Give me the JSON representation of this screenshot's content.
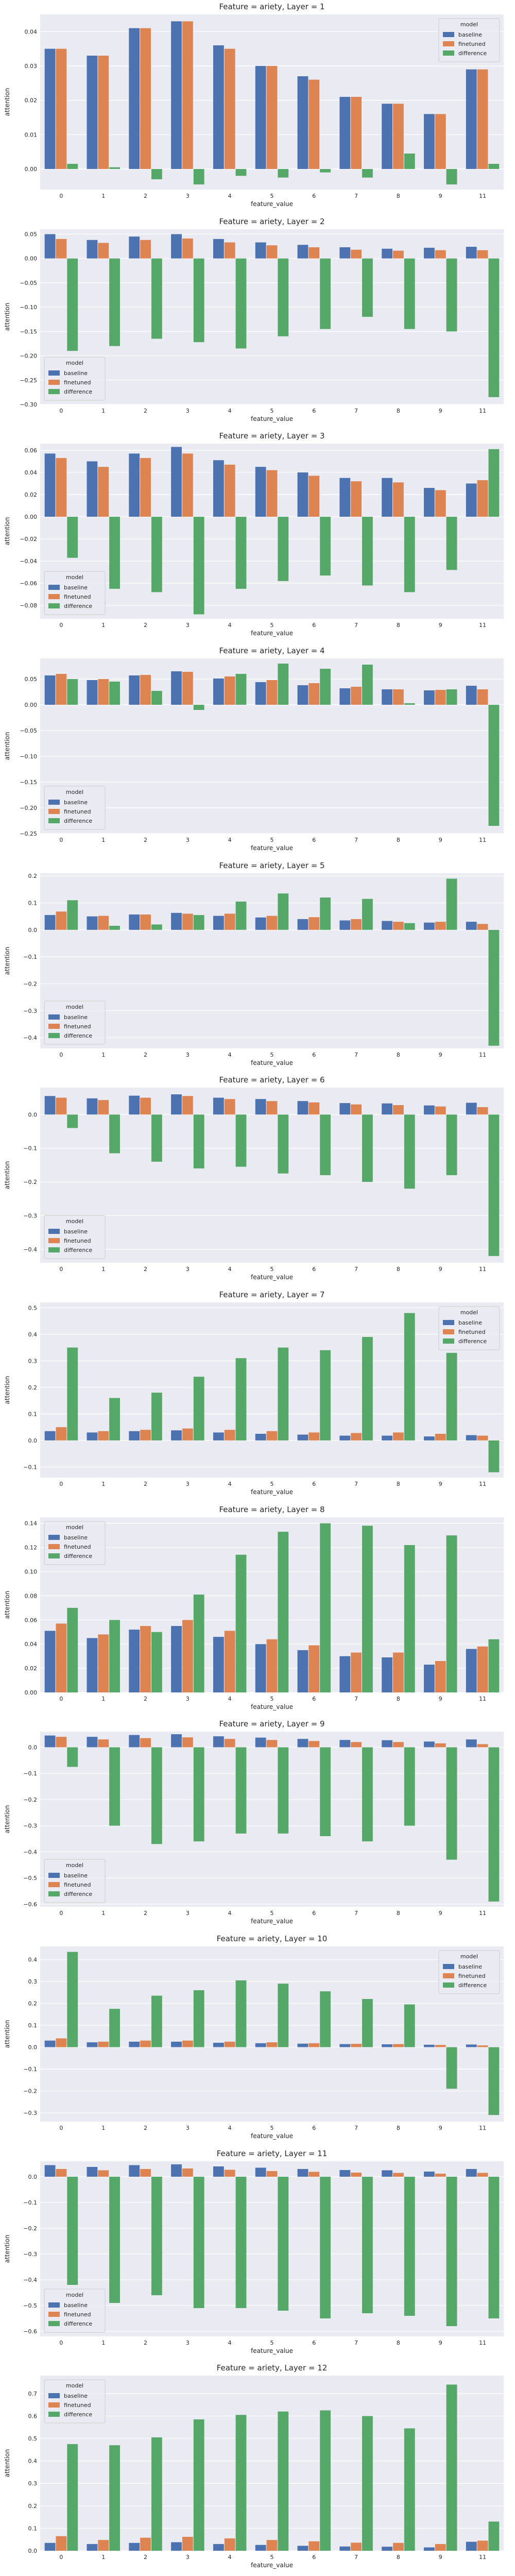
{
  "colors": {
    "baseline": "#4c72b0",
    "finetuned": "#dd8452",
    "difference": "#55a868",
    "plot_bg": "#eaeaf2",
    "grid": "#ffffff"
  },
  "chart_data": [
    {
      "type": "bar",
      "title": "Feature = ariety, Layer = 1",
      "xlabel": "feature_value",
      "ylabel": "attention",
      "categories": [
        "0",
        "1",
        "2",
        "3",
        "4",
        "5",
        "6",
        "7",
        "8",
        "9",
        "11"
      ],
      "ylim": [
        -0.006,
        0.045
      ],
      "yticks": [
        0.0,
        0.01,
        0.02,
        0.03,
        0.04
      ],
      "ytick_labels": [
        "0.00",
        "0.01",
        "0.02",
        "0.03",
        "0.04"
      ],
      "legend": {
        "title": "model",
        "position": "top-right"
      },
      "series": [
        {
          "name": "baseline",
          "values": [
            0.035,
            0.033,
            0.041,
            0.043,
            0.036,
            0.03,
            0.027,
            0.021,
            0.019,
            0.016,
            0.029
          ]
        },
        {
          "name": "finetuned",
          "values": [
            0.035,
            0.033,
            0.041,
            0.043,
            0.035,
            0.03,
            0.026,
            0.021,
            0.019,
            0.016,
            0.029
          ]
        },
        {
          "name": "difference",
          "values": [
            0.0015,
            0.0005,
            -0.003,
            -0.0045,
            -0.002,
            -0.0025,
            -0.001,
            -0.0025,
            0.0045,
            -0.0045,
            0.0015
          ]
        }
      ]
    },
    {
      "type": "bar",
      "title": "Feature = ariety, Layer = 2",
      "xlabel": "feature_value",
      "ylabel": "attention",
      "categories": [
        "0",
        "1",
        "2",
        "3",
        "4",
        "5",
        "6",
        "7",
        "8",
        "9",
        "11"
      ],
      "ylim": [
        -0.3,
        0.06
      ],
      "yticks": [
        0.05,
        0.0,
        -0.05,
        -0.1,
        -0.15,
        -0.2,
        -0.25,
        -0.3
      ],
      "ytick_labels": [
        "0.05",
        "0.00",
        "−0.05",
        "−0.10",
        "−0.15",
        "−0.20",
        "−0.25",
        "−0.30"
      ],
      "legend": {
        "title": "model",
        "position": "bottom-left"
      },
      "series": [
        {
          "name": "baseline",
          "values": [
            0.05,
            0.038,
            0.045,
            0.05,
            0.04,
            0.033,
            0.028,
            0.023,
            0.02,
            0.022,
            0.024
          ]
        },
        {
          "name": "finetuned",
          "values": [
            0.04,
            0.032,
            0.038,
            0.041,
            0.033,
            0.027,
            0.023,
            0.018,
            0.016,
            0.017,
            0.017
          ]
        },
        {
          "name": "difference",
          "values": [
            -0.19,
            -0.18,
            -0.165,
            -0.172,
            -0.185,
            -0.16,
            -0.145,
            -0.12,
            -0.145,
            -0.15,
            -0.285
          ]
        }
      ]
    },
    {
      "type": "bar",
      "title": "Feature = ariety, Layer = 3",
      "xlabel": "feature_value",
      "ylabel": "attention",
      "categories": [
        "0",
        "1",
        "2",
        "3",
        "4",
        "5",
        "6",
        "7",
        "8",
        "9",
        "11"
      ],
      "ylim": [
        -0.092,
        0.066
      ],
      "yticks": [
        0.06,
        0.04,
        0.02,
        0.0,
        -0.02,
        -0.04,
        -0.06,
        -0.08
      ],
      "ytick_labels": [
        "0.06",
        "0.04",
        "0.02",
        "0.00",
        "−0.02",
        "−0.04",
        "−0.06",
        "−0.08"
      ],
      "legend": {
        "title": "model",
        "position": "bottom-left"
      },
      "series": [
        {
          "name": "baseline",
          "values": [
            0.057,
            0.05,
            0.057,
            0.063,
            0.051,
            0.045,
            0.04,
            0.035,
            0.035,
            0.026,
            0.03
          ]
        },
        {
          "name": "finetuned",
          "values": [
            0.053,
            0.045,
            0.053,
            0.057,
            0.047,
            0.042,
            0.037,
            0.032,
            0.031,
            0.024,
            0.033
          ]
        },
        {
          "name": "difference",
          "values": [
            -0.037,
            -0.065,
            -0.068,
            -0.088,
            -0.065,
            -0.058,
            -0.053,
            -0.062,
            -0.068,
            -0.048,
            0.061
          ]
        }
      ]
    },
    {
      "type": "bar",
      "title": "Feature = ariety, Layer = 4",
      "xlabel": "feature_value",
      "ylabel": "attention",
      "categories": [
        "0",
        "1",
        "2",
        "3",
        "4",
        "5",
        "6",
        "7",
        "8",
        "9",
        "11"
      ],
      "ylim": [
        -0.25,
        0.09
      ],
      "yticks": [
        0.05,
        0.0,
        -0.05,
        -0.1,
        -0.15,
        -0.2,
        -0.25
      ],
      "ytick_labels": [
        "0.05",
        "0.00",
        "−0.05",
        "−0.10",
        "−0.15",
        "−0.20",
        "−0.25"
      ],
      "legend": {
        "title": "model",
        "position": "bottom-left"
      },
      "series": [
        {
          "name": "baseline",
          "values": [
            0.057,
            0.048,
            0.057,
            0.065,
            0.051,
            0.044,
            0.038,
            0.032,
            0.03,
            0.028,
            0.037
          ]
        },
        {
          "name": "finetuned",
          "values": [
            0.06,
            0.05,
            0.058,
            0.064,
            0.055,
            0.048,
            0.042,
            0.035,
            0.03,
            0.029,
            0.03
          ]
        },
        {
          "name": "difference",
          "values": [
            0.05,
            0.045,
            0.027,
            -0.01,
            0.06,
            0.08,
            0.07,
            0.078,
            0.003,
            0.03,
            -0.235
          ]
        }
      ]
    },
    {
      "type": "bar",
      "title": "Feature = ariety, Layer = 5",
      "xlabel": "feature_value",
      "ylabel": "attention",
      "categories": [
        "0",
        "1",
        "2",
        "3",
        "4",
        "5",
        "6",
        "7",
        "8",
        "9",
        "11"
      ],
      "ylim": [
        -0.44,
        0.21
      ],
      "yticks": [
        0.2,
        0.1,
        0.0,
        -0.1,
        -0.2,
        -0.3,
        -0.4
      ],
      "ytick_labels": [
        "0.2",
        "0.1",
        "0.0",
        "−0.1",
        "−0.2",
        "−0.3",
        "−0.4"
      ],
      "legend": {
        "title": "model",
        "position": "bottom-left"
      },
      "series": [
        {
          "name": "baseline",
          "values": [
            0.055,
            0.05,
            0.057,
            0.063,
            0.052,
            0.046,
            0.04,
            0.035,
            0.033,
            0.027,
            0.03
          ]
        },
        {
          "name": "finetuned",
          "values": [
            0.068,
            0.052,
            0.057,
            0.06,
            0.06,
            0.052,
            0.047,
            0.04,
            0.03,
            0.03,
            0.022
          ]
        },
        {
          "name": "difference",
          "values": [
            0.11,
            0.015,
            0.02,
            0.055,
            0.105,
            0.135,
            0.12,
            0.115,
            0.025,
            0.19,
            -0.43
          ]
        }
      ]
    },
    {
      "type": "bar",
      "title": "Feature = ariety, Layer = 6",
      "xlabel": "feature_value",
      "ylabel": "attention",
      "categories": [
        "0",
        "1",
        "2",
        "3",
        "4",
        "5",
        "6",
        "7",
        "8",
        "9",
        "11"
      ],
      "ylim": [
        -0.44,
        0.08
      ],
      "yticks": [
        0.0,
        -0.1,
        -0.2,
        -0.3,
        -0.4
      ],
      "ytick_labels": [
        "0.0",
        "−0.1",
        "−0.2",
        "−0.3",
        "−0.4"
      ],
      "legend": {
        "title": "model",
        "position": "bottom-left"
      },
      "series": [
        {
          "name": "baseline",
          "values": [
            0.055,
            0.048,
            0.056,
            0.06,
            0.05,
            0.046,
            0.04,
            0.034,
            0.033,
            0.027,
            0.035
          ]
        },
        {
          "name": "finetuned",
          "values": [
            0.05,
            0.043,
            0.05,
            0.055,
            0.046,
            0.04,
            0.036,
            0.03,
            0.028,
            0.024,
            0.022
          ]
        },
        {
          "name": "difference",
          "values": [
            -0.04,
            -0.115,
            -0.14,
            -0.16,
            -0.155,
            -0.175,
            -0.18,
            -0.2,
            -0.22,
            -0.18,
            -0.42
          ]
        }
      ]
    },
    {
      "type": "bar",
      "title": "Feature = ariety, Layer = 7",
      "xlabel": "feature_value",
      "ylabel": "attention",
      "categories": [
        "0",
        "1",
        "2",
        "3",
        "4",
        "5",
        "6",
        "7",
        "8",
        "9",
        "11"
      ],
      "ylim": [
        -0.14,
        0.52
      ],
      "yticks": [
        0.5,
        0.4,
        0.3,
        0.2,
        0.1,
        0.0,
        -0.1
      ],
      "ytick_labels": [
        "0.5",
        "0.4",
        "0.3",
        "0.2",
        "0.1",
        "0.0",
        "−0.1"
      ],
      "legend": {
        "title": "model",
        "position": "top-right"
      },
      "series": [
        {
          "name": "baseline",
          "values": [
            0.035,
            0.03,
            0.035,
            0.038,
            0.03,
            0.025,
            0.022,
            0.018,
            0.018,
            0.015,
            0.02
          ]
        },
        {
          "name": "finetuned",
          "values": [
            0.05,
            0.035,
            0.04,
            0.045,
            0.04,
            0.035,
            0.03,
            0.028,
            0.03,
            0.025,
            0.018
          ]
        },
        {
          "name": "difference",
          "values": [
            0.35,
            0.16,
            0.18,
            0.24,
            0.31,
            0.35,
            0.34,
            0.39,
            0.48,
            0.33,
            -0.12
          ]
        }
      ]
    },
    {
      "type": "bar",
      "title": "Feature = ariety, Layer = 8",
      "xlabel": "feature_value",
      "ylabel": "attention",
      "categories": [
        "0",
        "1",
        "2",
        "3",
        "4",
        "5",
        "6",
        "7",
        "8",
        "9",
        "11"
      ],
      "ylim": [
        0.0,
        0.145
      ],
      "yticks": [
        0.0,
        0.02,
        0.04,
        0.06,
        0.08,
        0.1,
        0.12,
        0.14
      ],
      "ytick_labels": [
        "0.00",
        "0.02",
        "0.04",
        "0.06",
        "0.08",
        "0.10",
        "0.12",
        "0.14"
      ],
      "legend": {
        "title": "model",
        "position": "top-left"
      },
      "series": [
        {
          "name": "baseline",
          "values": [
            0.051,
            0.045,
            0.052,
            0.055,
            0.046,
            0.04,
            0.035,
            0.03,
            0.029,
            0.023,
            0.036
          ]
        },
        {
          "name": "finetuned",
          "values": [
            0.057,
            0.048,
            0.055,
            0.06,
            0.051,
            0.044,
            0.039,
            0.033,
            0.033,
            0.026,
            0.038
          ]
        },
        {
          "name": "difference",
          "values": [
            0.07,
            0.06,
            0.05,
            0.081,
            0.114,
            0.133,
            0.14,
            0.138,
            0.122,
            0.13,
            0.044
          ]
        }
      ]
    },
    {
      "type": "bar",
      "title": "Feature = ariety, Layer = 9",
      "xlabel": "feature_value",
      "ylabel": "attention",
      "categories": [
        "0",
        "1",
        "2",
        "3",
        "4",
        "5",
        "6",
        "7",
        "8",
        "9",
        "11"
      ],
      "ylim": [
        -0.61,
        0.06
      ],
      "yticks": [
        0.0,
        -0.1,
        -0.2,
        -0.3,
        -0.4,
        -0.5,
        -0.6
      ],
      "ytick_labels": [
        "0.0",
        "−0.1",
        "−0.2",
        "−0.3",
        "−0.4",
        "−0.5",
        "−0.6"
      ],
      "legend": {
        "title": "model",
        "position": "bottom-left"
      },
      "series": [
        {
          "name": "baseline",
          "values": [
            0.045,
            0.04,
            0.047,
            0.05,
            0.042,
            0.037,
            0.032,
            0.028,
            0.027,
            0.022,
            0.03
          ]
        },
        {
          "name": "finetuned",
          "values": [
            0.04,
            0.03,
            0.035,
            0.038,
            0.032,
            0.028,
            0.024,
            0.02,
            0.02,
            0.015,
            0.012
          ]
        },
        {
          "name": "difference",
          "values": [
            -0.075,
            -0.3,
            -0.37,
            -0.36,
            -0.33,
            -0.33,
            -0.34,
            -0.36,
            -0.3,
            -0.43,
            -0.59
          ]
        }
      ]
    },
    {
      "type": "bar",
      "title": "Feature = ariety, Layer = 10",
      "xlabel": "feature_value",
      "ylabel": "attention",
      "categories": [
        "0",
        "1",
        "2",
        "3",
        "4",
        "5",
        "6",
        "7",
        "8",
        "9",
        "11"
      ],
      "ylim": [
        -0.34,
        0.46
      ],
      "yticks": [
        0.4,
        0.3,
        0.2,
        0.1,
        0.0,
        -0.1,
        -0.2,
        -0.3
      ],
      "ytick_labels": [
        "0.4",
        "0.3",
        "0.2",
        "0.1",
        "0.0",
        "−0.1",
        "−0.2",
        "−0.3"
      ],
      "legend": {
        "title": "model",
        "position": "top-right"
      },
      "series": [
        {
          "name": "baseline",
          "values": [
            0.03,
            0.022,
            0.025,
            0.025,
            0.02,
            0.018,
            0.016,
            0.014,
            0.013,
            0.011,
            0.012
          ]
        },
        {
          "name": "finetuned",
          "values": [
            0.04,
            0.025,
            0.03,
            0.03,
            0.025,
            0.022,
            0.018,
            0.015,
            0.014,
            0.01,
            0.008
          ]
        },
        {
          "name": "difference",
          "values": [
            0.435,
            0.175,
            0.235,
            0.26,
            0.305,
            0.29,
            0.255,
            0.22,
            0.195,
            -0.19,
            -0.31
          ]
        }
      ]
    },
    {
      "type": "bar",
      "title": "Feature = ariety, Layer = 11",
      "xlabel": "feature_value",
      "ylabel": "attention",
      "categories": [
        "0",
        "1",
        "2",
        "3",
        "4",
        "5",
        "6",
        "7",
        "8",
        "9",
        "11"
      ],
      "ylim": [
        -0.62,
        0.06
      ],
      "yticks": [
        0.0,
        -0.1,
        -0.2,
        -0.3,
        -0.4,
        -0.5,
        -0.6
      ],
      "ytick_labels": [
        "0.0",
        "−0.1",
        "−0.2",
        "−0.3",
        "−0.4",
        "−0.5",
        "−0.6"
      ],
      "legend": {
        "title": "model",
        "position": "bottom-left"
      },
      "series": [
        {
          "name": "baseline",
          "values": [
            0.045,
            0.038,
            0.045,
            0.048,
            0.04,
            0.035,
            0.03,
            0.026,
            0.025,
            0.02,
            0.03
          ]
        },
        {
          "name": "finetuned",
          "values": [
            0.03,
            0.025,
            0.03,
            0.032,
            0.027,
            0.022,
            0.019,
            0.016,
            0.015,
            0.012,
            0.015
          ]
        },
        {
          "name": "difference",
          "values": [
            -0.42,
            -0.49,
            -0.46,
            -0.51,
            -0.51,
            -0.52,
            -0.55,
            -0.53,
            -0.54,
            -0.58,
            -0.55
          ]
        }
      ]
    },
    {
      "type": "bar",
      "title": "Feature = ariety, Layer = 12",
      "xlabel": "feature_value",
      "ylabel": "attention",
      "categories": [
        "0",
        "1",
        "2",
        "3",
        "4",
        "5",
        "6",
        "7",
        "8",
        "9",
        "11"
      ],
      "ylim": [
        0.0,
        0.78
      ],
      "yticks": [
        0.0,
        0.1,
        0.2,
        0.3,
        0.4,
        0.5,
        0.6,
        0.7
      ],
      "ytick_labels": [
        "0.0",
        "0.1",
        "0.2",
        "0.3",
        "0.4",
        "0.5",
        "0.6",
        "0.7"
      ],
      "legend": {
        "title": "model",
        "position": "top-left"
      },
      "series": [
        {
          "name": "baseline",
          "values": [
            0.035,
            0.03,
            0.035,
            0.038,
            0.03,
            0.026,
            0.022,
            0.019,
            0.018,
            0.015,
            0.04
          ]
        },
        {
          "name": "finetuned",
          "values": [
            0.065,
            0.048,
            0.058,
            0.062,
            0.055,
            0.048,
            0.042,
            0.036,
            0.035,
            0.03,
            0.045
          ]
        },
        {
          "name": "difference",
          "values": [
            0.475,
            0.47,
            0.505,
            0.585,
            0.605,
            0.62,
            0.625,
            0.6,
            0.545,
            0.74,
            0.13
          ]
        }
      ]
    }
  ]
}
